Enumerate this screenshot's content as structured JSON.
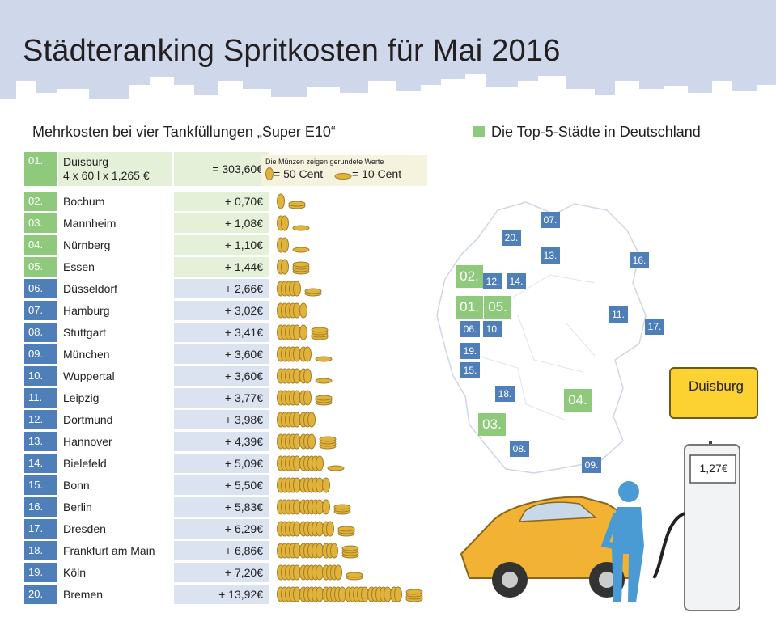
{
  "title": "Städteranking Spritkosten für Mai 2016",
  "subtitle": "Mehrkosten bei vier Tankfüllungen „Super E10“",
  "legend_top5": "Die Top-5-Städte in Deutschland",
  "coin_legend": {
    "note": "Die Münzen zeigen gerundete Werte",
    "big_coin": "= 50 Cent",
    "small_coin": "= 10 Cent"
  },
  "colors": {
    "top5": "#8fc97c",
    "top5_light": "#e5f0d9",
    "other": "#4f7fb9",
    "other_light": "#dce3f0",
    "coin": "#e2b33b",
    "car": "#f2b233",
    "sign": "#fbd232"
  },
  "first": {
    "rank": "01.",
    "city": "Duisburg",
    "formula": "4 x 60 l x 1,265 €",
    "value": "= 303,60€"
  },
  "chart_data": {
    "type": "bar",
    "title": "Städteranking Spritkosten für Mai 2016",
    "subtitle": "Mehrkosten bei vier Tankfüllungen „Super E10“",
    "unit": "€",
    "base": {
      "city": "Duisburg",
      "rank": 1,
      "liters": 60,
      "fills": 4,
      "price": 1.265,
      "total": 303.6
    },
    "rows": [
      {
        "rank": "02.",
        "city": "Bochum",
        "label": "+ 0,70€",
        "value": 0.7,
        "top5": true
      },
      {
        "rank": "03.",
        "city": "Mannheim",
        "label": "+ 1,08€",
        "value": 1.08,
        "top5": true
      },
      {
        "rank": "04.",
        "city": "Nürnberg",
        "label": "+ 1,10€",
        "value": 1.1,
        "top5": true
      },
      {
        "rank": "05.",
        "city": "Essen",
        "label": "+ 1,44€",
        "value": 1.44,
        "top5": true
      },
      {
        "rank": "06.",
        "city": "Düsseldorf",
        "label": "+ 2,66€",
        "value": 2.66,
        "top5": false
      },
      {
        "rank": "07.",
        "city": "Hamburg",
        "label": "+ 3,02€",
        "value": 3.02,
        "top5": false
      },
      {
        "rank": "08.",
        "city": "Stuttgart",
        "label": "+ 3,41€",
        "value": 3.41,
        "top5": false
      },
      {
        "rank": "09.",
        "city": "München",
        "label": "+ 3,60€",
        "value": 3.6,
        "top5": false
      },
      {
        "rank": "10.",
        "city": "Wuppertal",
        "label": "+ 3,60€",
        "value": 3.6,
        "top5": false
      },
      {
        "rank": "11.",
        "city": "Leipzig",
        "label": "+ 3,77€",
        "value": 3.77,
        "top5": false
      },
      {
        "rank": "12.",
        "city": "Dortmund",
        "label": "+ 3,98€",
        "value": 3.98,
        "top5": false
      },
      {
        "rank": "13.",
        "city": "Hannover",
        "label": "+ 4,39€",
        "value": 4.39,
        "top5": false
      },
      {
        "rank": "14.",
        "city": "Bielefeld",
        "label": "+ 5,09€",
        "value": 5.09,
        "top5": false
      },
      {
        "rank": "15.",
        "city": "Bonn",
        "label": "+ 5,50€",
        "value": 5.5,
        "top5": false
      },
      {
        "rank": "16.",
        "city": "Berlin",
        "label": "+ 5,83€",
        "value": 5.83,
        "top5": false
      },
      {
        "rank": "17.",
        "city": "Dresden",
        "label": "+ 6,29€",
        "value": 6.29,
        "top5": false
      },
      {
        "rank": "18.",
        "city": "Frankfurt am Main",
        "label": "+ 6,86€",
        "value": 6.86,
        "top5": false
      },
      {
        "rank": "19.",
        "city": "Köln",
        "label": "+ 7,20€",
        "value": 7.2,
        "top5": false
      },
      {
        "rank": "20.",
        "city": "Bremen",
        "label": "+ 13,92€",
        "value": 13.92,
        "top5": false
      }
    ]
  },
  "map_markers": [
    {
      "label": "07.",
      "size": "small",
      "top5": false
    },
    {
      "label": "20.",
      "size": "small",
      "top5": false
    },
    {
      "label": "13.",
      "size": "small",
      "top5": false
    },
    {
      "label": "16.",
      "size": "small",
      "top5": false
    },
    {
      "label": "02.",
      "size": "large",
      "top5": true
    },
    {
      "label": "12.",
      "size": "small",
      "top5": false
    },
    {
      "label": "14.",
      "size": "small",
      "top5": false
    },
    {
      "label": "01.",
      "size": "large",
      "top5": true
    },
    {
      "label": "05.",
      "size": "large",
      "top5": true
    },
    {
      "label": "06.",
      "size": "small",
      "top5": false
    },
    {
      "label": "10.",
      "size": "small",
      "top5": false
    },
    {
      "label": "11.",
      "size": "small",
      "top5": false
    },
    {
      "label": "17.",
      "size": "small",
      "top5": false
    },
    {
      "label": "19.",
      "size": "small",
      "top5": false
    },
    {
      "label": "15.",
      "size": "small",
      "top5": false
    },
    {
      "label": "18.",
      "size": "small",
      "top5": false
    },
    {
      "label": "04.",
      "size": "large",
      "top5": true
    },
    {
      "label": "03.",
      "size": "large",
      "top5": true
    },
    {
      "label": "08.",
      "size": "small",
      "top5": false
    },
    {
      "label": "09.",
      "size": "small",
      "top5": false
    }
  ],
  "sign": "Duisburg",
  "pump_price": "1,27€"
}
